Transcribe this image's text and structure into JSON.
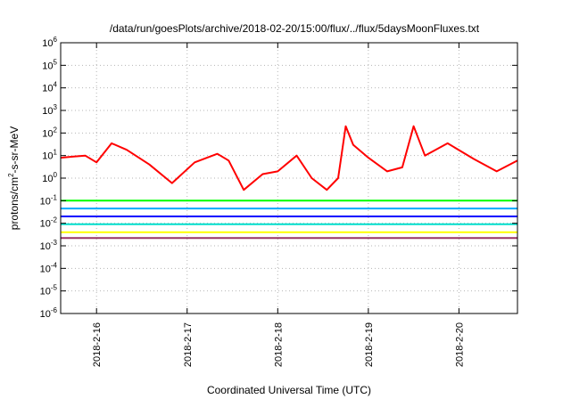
{
  "chart_data": {
    "type": "line",
    "title": "/data/run/goesPlots/archive/2018-02-20/15:00/flux/../flux/5daysMoonFluxes.txt",
    "xlabel": "Coordinated Universal Time (UTC)",
    "ylabel": {
      "prefix": "protons/cm",
      "sup": "2",
      "suffix": "-s-sr-MeV"
    },
    "y_scale": "log",
    "ylim": [
      1e-06,
      1000000.0
    ],
    "y_ticks": [
      {
        "value": 1e-06,
        "exp": "-6"
      },
      {
        "value": 1e-05,
        "exp": "-5"
      },
      {
        "value": 0.0001,
        "exp": "-4"
      },
      {
        "value": 0.001,
        "exp": "-3"
      },
      {
        "value": 0.01,
        "exp": "-2"
      },
      {
        "value": 0.1,
        "exp": "-1"
      },
      {
        "value": 1,
        "exp": "0"
      },
      {
        "value": 10,
        "exp": "1"
      },
      {
        "value": 100,
        "exp": "2"
      },
      {
        "value": 1000.0,
        "exp": "3"
      },
      {
        "value": 10000.0,
        "exp": "4"
      },
      {
        "value": 100000.0,
        "exp": "5"
      },
      {
        "value": 1000000.0,
        "exp": "6"
      }
    ],
    "xlim": [
      "2018-02-15T14:30",
      "2018-02-20T15:30"
    ],
    "x_ticks": [
      {
        "value": "2018-02-16T00:00",
        "label": "2018-2-16"
      },
      {
        "value": "2018-02-17T00:00",
        "label": "2018-2-17"
      },
      {
        "value": "2018-02-18T00:00",
        "label": "2018-2-18"
      },
      {
        "value": "2018-02-19T00:00",
        "label": "2018-2-19"
      },
      {
        "value": "2018-02-20T00:00",
        "label": "2018-2-20"
      }
    ],
    "grid": true,
    "legend": "none",
    "series": [
      {
        "color": "#ff0000",
        "points": [
          [
            "2018-02-15T14:30",
            8
          ],
          [
            "2018-02-15T18:00",
            9
          ],
          [
            "2018-02-15T21:00",
            10
          ],
          [
            "2018-02-16T00:00",
            5
          ],
          [
            "2018-02-16T04:00",
            35
          ],
          [
            "2018-02-16T08:00",
            18
          ],
          [
            "2018-02-16T14:00",
            4
          ],
          [
            "2018-02-16T20:00",
            0.6
          ],
          [
            "2018-02-17T02:00",
            5
          ],
          [
            "2018-02-17T08:00",
            12
          ],
          [
            "2018-02-17T11:00",
            6
          ],
          [
            "2018-02-17T15:00",
            0.3
          ],
          [
            "2018-02-17T20:00",
            1.5
          ],
          [
            "2018-02-18T00:00",
            2
          ],
          [
            "2018-02-18T05:00",
            10
          ],
          [
            "2018-02-18T09:00",
            1
          ],
          [
            "2018-02-18T13:00",
            0.3
          ],
          [
            "2018-02-18T16:00",
            1
          ],
          [
            "2018-02-18T18:00",
            200
          ],
          [
            "2018-02-18T20:00",
            30
          ],
          [
            "2018-02-19T00:00",
            8
          ],
          [
            "2018-02-19T05:00",
            2
          ],
          [
            "2018-02-19T09:00",
            3
          ],
          [
            "2018-02-19T12:00",
            200
          ],
          [
            "2018-02-19T15:00",
            10
          ],
          [
            "2018-02-19T21:00",
            35
          ],
          [
            "2018-02-20T04:00",
            7
          ],
          [
            "2018-02-20T10:00",
            2
          ],
          [
            "2018-02-20T15:30",
            6
          ]
        ]
      },
      {
        "color": "#00ff00",
        "points": [
          [
            "2018-02-15T14:30",
            0.1
          ],
          [
            "2018-02-20T15:30",
            0.1
          ]
        ]
      },
      {
        "color": "#00aaff",
        "points": [
          [
            "2018-02-15T14:30",
            0.045
          ],
          [
            "2018-02-20T15:30",
            0.045
          ]
        ]
      },
      {
        "color": "#0000ff",
        "points": [
          [
            "2018-02-15T14:30",
            0.02
          ],
          [
            "2018-02-20T15:30",
            0.02
          ]
        ]
      },
      {
        "color": "#00ddcc",
        "points": [
          [
            "2018-02-15T14:30",
            0.009
          ],
          [
            "2018-02-20T15:30",
            0.009
          ]
        ]
      },
      {
        "color": "#ffff00",
        "points": [
          [
            "2018-02-15T14:30",
            0.004
          ],
          [
            "2018-02-20T15:30",
            0.004
          ]
        ]
      },
      {
        "color": "#993366",
        "points": [
          [
            "2018-02-15T14:30",
            0.0022
          ],
          [
            "2018-02-20T15:30",
            0.0022
          ]
        ]
      }
    ]
  }
}
